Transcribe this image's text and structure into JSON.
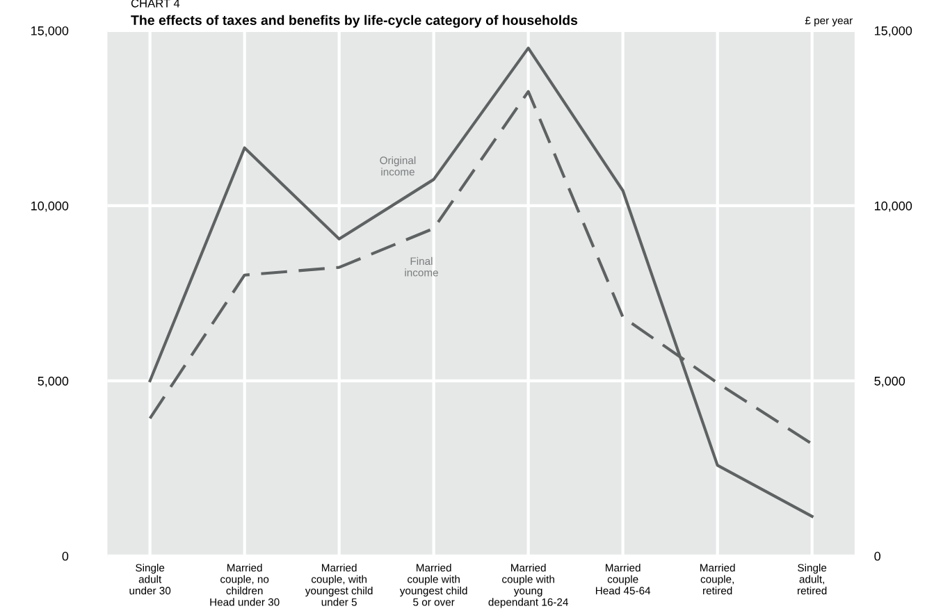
{
  "chart_data": {
    "type": "line",
    "title": "The effects of taxes and benefits by life-cycle category of households",
    "annotations": [
      "CHART 4",
      "£ per year"
    ],
    "categories": [
      "Single\nadult\nunder 30",
      "Married\ncouple, no\nchildren\nHead under 30",
      "Married\ncouple, with\nyoungest child\nunder 5",
      "Married\ncouple with\nyoungest child\n5 or over",
      "Married\ncouple with\nyoung\ndependant 16-24",
      "Married\ncouple\nHead 45-64",
      "Married\ncouple,\nretired",
      "Single\nadult,\nretired"
    ],
    "series": [
      {
        "name": "Original income",
        "color": "#5f6262",
        "line_style": "solid",
        "values": [
          5000,
          11650,
          9050,
          10750,
          14500,
          10430,
          2590,
          1130
        ]
      },
      {
        "name": "Final income",
        "color": "#5f6262",
        "line_style": "dashed",
        "values": [
          3930,
          8020,
          8240,
          9350,
          13260,
          6820,
          4940,
          3200
        ]
      }
    ],
    "ylim": [
      0,
      15000
    ],
    "yticks": [
      {
        "value": 0,
        "label": "0"
      },
      {
        "value": 5000,
        "label": "5,000"
      },
      {
        "value": 10000,
        "label": "10,000"
      },
      {
        "value": 15000,
        "label": "15,000"
      }
    ],
    "y2lim": [
      0,
      15000
    ],
    "y2ticks": [
      {
        "value": 0,
        "label": "0"
      },
      {
        "value": 5000,
        "label": "5,000"
      },
      {
        "value": 10000,
        "label": "10,000"
      },
      {
        "value": 15000,
        "label": "15,000"
      }
    ],
    "grid": true,
    "marker": "none",
    "legend": false
  }
}
